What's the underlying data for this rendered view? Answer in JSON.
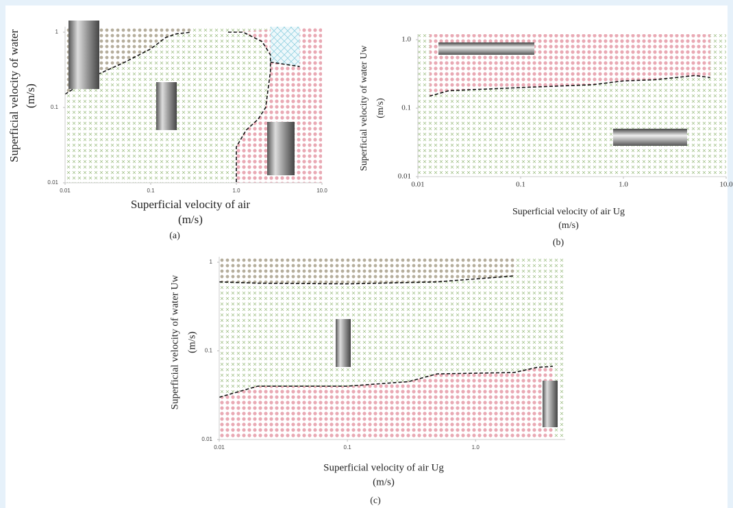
{
  "chart_data": [
    {
      "type": "line",
      "log_x": true,
      "log_y": true,
      "caption": "(a)",
      "xlabel": [
        "Superficial velocity of air",
        "(m/s)"
      ],
      "ylabel": [
        "Superficial velocity of water",
        "(m/s)"
      ],
      "xlim": [
        0.01,
        10
      ],
      "ylim": [
        0.01,
        1
      ],
      "xticks": [
        0.01,
        0.1,
        {
          "value": 1,
          "label": "1.0"
        },
        {
          "value": 10,
          "label": "10.0"
        }
      ],
      "yticks": [
        0.01,
        0.1,
        1
      ],
      "series": [
        {
          "color": "#111",
          "x": [
            0.01,
            0.02,
            0.05,
            0.1,
            0.15,
            0.2,
            0.3
          ],
          "values": [
            0.15,
            0.25,
            0.4,
            0.6,
            0.85,
            0.95,
            1.0
          ]
        },
        {
          "color": "#111",
          "x": [
            0.8,
            1.2,
            2,
            2.5,
            2.5,
            2.2,
            1.8,
            1.3,
            1.0,
            1.0
          ],
          "values": [
            1.0,
            1.0,
            0.75,
            0.5,
            0.3,
            0.1,
            0.07,
            0.05,
            0.03,
            0.01
          ]
        },
        {
          "color": "#111",
          "x": [
            2.5,
            5.5
          ],
          "values": [
            0.4,
            0.35
          ]
        }
      ]
    },
    {
      "type": "line",
      "log_x": true,
      "log_y": true,
      "caption": "(b)",
      "xlabel": [
        "Superficial velocity of air Ug",
        "(m/s)"
      ],
      "ylabel": [
        "Superficial velocity of water Uw",
        "(m/s)"
      ],
      "xlim": [
        0.01,
        10
      ],
      "ylim": [
        0.01,
        1
      ],
      "xticks": [
        0.01,
        0.1,
        {
          "value": 1,
          "label": "1.0"
        },
        {
          "value": 10,
          "label": "10.0"
        }
      ],
      "yticks": [
        0.01,
        0.1,
        {
          "value": 1,
          "label": "1.0"
        }
      ],
      "series": [
        {
          "color": "#111",
          "x": [
            0.013,
            0.02,
            0.1,
            0.5,
            1,
            2,
            5,
            7
          ],
          "values": [
            0.15,
            0.18,
            0.2,
            0.22,
            0.25,
            0.26,
            0.3,
            0.28
          ]
        }
      ]
    },
    {
      "type": "line",
      "log_x": true,
      "log_y": true,
      "caption": "(c)",
      "xlabel": [
        "Superficial velocity of air Ug",
        "(m/s)"
      ],
      "ylabel": [
        "Superficial velocity of water Uw",
        "(m/s)"
      ],
      "xlim": [
        0.01,
        5
      ],
      "ylim": [
        0.01,
        1
      ],
      "xticks": [
        0.01,
        0.1,
        {
          "value": 1,
          "label": "1.0"
        }
      ],
      "yticks": [
        0.01,
        0.1,
        1
      ],
      "series": [
        {
          "color": "#111",
          "x": [
            0.01,
            0.02,
            0.1,
            0.5,
            2
          ],
          "values": [
            0.6,
            0.58,
            0.57,
            0.6,
            0.7
          ]
        },
        {
          "color": "#111",
          "x": [
            0.01,
            0.02,
            0.1,
            0.3,
            0.5,
            1,
            2,
            3,
            4
          ],
          "values": [
            0.03,
            0.04,
            0.04,
            0.045,
            0.055,
            0.056,
            0.057,
            0.065,
            0.067
          ]
        }
      ]
    }
  ]
}
